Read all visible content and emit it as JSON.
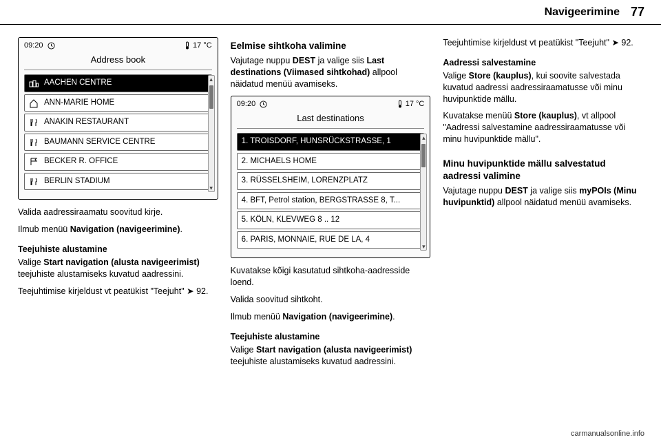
{
  "header": {
    "section": "Navigeerimine",
    "page": "77"
  },
  "footer": {
    "url": "carmanualsonline.info"
  },
  "col1": {
    "device": {
      "time": "09:20",
      "title": "Address book",
      "temp": "17 °C",
      "rows": [
        {
          "label": "AACHEN CENTRE",
          "selected": true,
          "icon": "city"
        },
        {
          "label": "ANN-MARIE HOME",
          "icon": "home"
        },
        {
          "label": "ANAKIN RESTAURANT",
          "icon": "rest"
        },
        {
          "label": "BAUMANN SERVICE CENTRE",
          "icon": "rest"
        },
        {
          "label": "BECKER R. OFFICE",
          "icon": "flag"
        },
        {
          "label": "BERLIN STADIUM",
          "icon": "rest"
        }
      ]
    },
    "p1": "Valida aadressiraamatu soovitud kirje.",
    "p2a": "Ilmub menüü ",
    "p2b": "Navigation (navigeerimine)",
    "p2c": ".",
    "h1": "Teejuhiste alustamine",
    "p3a": "Valige ",
    "p3b": "Start navigation (alusta navigeerimist)",
    "p3c": " teejuhiste alustamiseks kuvatud aadressini.",
    "p4a": "Teejuhtimise kirjeldust vt peatükist \"Teejuht\" ",
    "p4b": "92."
  },
  "col2": {
    "h1": "Eelmise sihtkoha valimine",
    "p1a": "Vajutage nuppu ",
    "p1b": "DEST",
    "p1c": " ja valige siis ",
    "p1d": "Last destinations (Viimased sihtkohad)",
    "p1e": " allpool näidatud menüü avamiseks.",
    "device": {
      "time": "09:20",
      "title": "Last destinations",
      "temp": "17 °C",
      "rows": [
        {
          "label": "1. TROISDORF, HUNSRÜCKSTRASSE, 1",
          "selected": true
        },
        {
          "label": "2. MICHAELS HOME"
        },
        {
          "label": "3. RÜSSELSHEIM, LORENZPLATZ"
        },
        {
          "label": "4. BFT, Petrol station, BERGSTRASSE 8, T..."
        },
        {
          "label": "5. KÖLN, KLEVWEG 8 .. 12"
        },
        {
          "label": "6. PARIS, MONNAIE, RUE DE LA, 4"
        }
      ]
    },
    "p2": "Kuvatakse kõigi kasutatud sihtkoha-aadresside loend.",
    "p3": "Valida soovitud sihtkoht.",
    "p4a": "Ilmub menüü ",
    "p4b": "Navigation (navigeerimine)",
    "p4c": ".",
    "h2": "Teejuhiste alustamine",
    "p5a": "Valige ",
    "p5b": "Start navigation (alusta navigeerimist)",
    "p5c": " teejuhiste alustamiseks kuvatud aadressini."
  },
  "col3": {
    "p1a": "Teejuhtimise kirjeldust vt peatükist \"Teejuht\" ",
    "p1b": "92.",
    "h1": "Aadressi salvestamine",
    "p2a": "Valige ",
    "p2b": "Store (kauplus)",
    "p2c": ", kui soovite salvestada kuvatud aadressi aadressiraamatusse või minu huvipunktide mällu.",
    "p3a": "Kuvatakse menüü ",
    "p3b": "Store (kauplus)",
    "p3c": ", vt allpool \"Aadressi salvestamine aadressiraamatusse või minu huvipunktide mällu\".",
    "h2": "Minu huvipunktide mällu salvestatud aadressi valimine",
    "p4a": "Vajutage nuppu ",
    "p4b": "DEST",
    "p4c": " ja valige siis ",
    "p4d": "myPOIs (Minu huvipunktid)",
    "p4e": " allpool näidatud menüü avamiseks."
  }
}
